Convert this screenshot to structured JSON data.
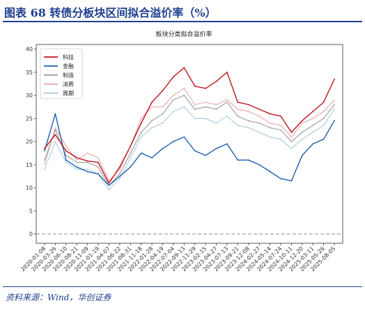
{
  "header": {
    "title": "图表 68 转债分板块区间拟合溢价率（%）"
  },
  "footer": {
    "source": "资料来源：Wind，华创证券"
  },
  "chart_data": {
    "type": "line",
    "title": "板块分类拟合溢价率",
    "xlabel": "",
    "ylabel": "",
    "ylim": [
      -2,
      41
    ],
    "yticks": [
      0,
      5,
      10,
      15,
      20,
      25,
      30,
      35,
      40
    ],
    "grid": false,
    "legend_position": "top-left",
    "reference_line": {
      "y": 0,
      "style": "dashed",
      "color": "#999999"
    },
    "x_tick_labels": [
      "2020-01-08",
      "2020-03-26",
      "2020-06-10",
      "2020-08-21",
      "2020-11-09",
      "2021-01-19",
      "2021-04-07",
      "2021-06-22",
      "2021-08-31",
      "2021-11-18",
      "2022-01-28",
      "2022-04-19",
      "2022-07-04",
      "2022-09-13",
      "2022-11-29",
      "2023-02-15",
      "2023-04-27",
      "2023-07-13",
      "2023-09-21",
      "2023-12-08",
      "2024-02-27",
      "2024-05-14",
      "2024-07-24",
      "2024-10-11",
      "2024-12-20",
      "2025-03-11",
      "2025-05-26",
      "2025-08-05"
    ],
    "x": [
      "2020-01-08",
      "2020-03-26",
      "2020-06-10",
      "2020-08-21",
      "2020-11-09",
      "2021-01-19",
      "2021-04-07",
      "2021-06-22",
      "2021-08-31",
      "2021-11-18",
      "2022-01-28",
      "2022-04-19",
      "2022-07-04",
      "2022-09-13",
      "2022-11-29",
      "2023-02-15",
      "2023-04-27",
      "2023-07-13",
      "2023-09-21",
      "2023-12-08",
      "2024-02-27",
      "2024-05-14",
      "2024-07-24",
      "2024-10-11",
      "2024-12-20",
      "2025-03-11",
      "2025-05-26",
      "2025-08-05"
    ],
    "series": [
      {
        "name": "科技",
        "color": "#c0141c",
        "width": 1.4,
        "values": [
          18.5,
          21.5,
          18.0,
          16.5,
          15.8,
          15.5,
          11.0,
          14.5,
          19.0,
          24.0,
          28.5,
          31.0,
          34.0,
          36.0,
          32.0,
          31.5,
          33.0,
          35.0,
          28.5,
          28.0,
          27.0,
          26.0,
          25.5,
          22.0,
          24.5,
          26.5,
          28.5,
          33.5
        ]
      },
      {
        "name": "金融",
        "color": "#1f5fb0",
        "width": 1.4,
        "values": [
          18.0,
          26.0,
          16.0,
          14.5,
          13.5,
          13.0,
          10.5,
          12.5,
          14.5,
          17.5,
          16.5,
          18.5,
          20.0,
          21.0,
          18.0,
          17.0,
          18.5,
          19.5,
          16.0,
          16.0,
          15.0,
          13.5,
          12.0,
          11.5,
          17.0,
          19.5,
          20.5,
          24.5
        ]
      },
      {
        "name": "制造",
        "color": "#9a9a9a",
        "width": 1.1,
        "values": [
          16.0,
          22.5,
          17.0,
          15.5,
          15.5,
          14.5,
          10.5,
          13.0,
          17.5,
          22.0,
          24.5,
          26.0,
          29.0,
          30.0,
          27.0,
          27.5,
          27.0,
          28.5,
          25.5,
          24.5,
          24.0,
          23.0,
          22.5,
          20.0,
          22.0,
          23.5,
          25.0,
          28.0
        ]
      },
      {
        "name": "消费",
        "color": "#e8a8a8",
        "width": 1.1,
        "values": [
          15.0,
          23.0,
          19.0,
          16.0,
          17.5,
          16.5,
          11.5,
          14.0,
          19.0,
          25.0,
          27.5,
          27.5,
          30.0,
          31.5,
          28.0,
          28.5,
          28.0,
          29.0,
          27.0,
          26.5,
          25.5,
          24.0,
          23.5,
          21.0,
          24.0,
          25.0,
          26.5,
          29.0
        ]
      },
      {
        "name": "周期",
        "color": "#a8cce0",
        "width": 1.1,
        "values": [
          14.0,
          20.0,
          15.5,
          14.0,
          14.0,
          13.0,
          9.5,
          12.0,
          16.5,
          21.0,
          23.0,
          24.0,
          26.5,
          27.5,
          25.0,
          25.0,
          24.0,
          25.5,
          23.5,
          23.0,
          22.0,
          21.0,
          20.5,
          18.5,
          20.5,
          22.0,
          23.5,
          27.0
        ]
      }
    ]
  }
}
